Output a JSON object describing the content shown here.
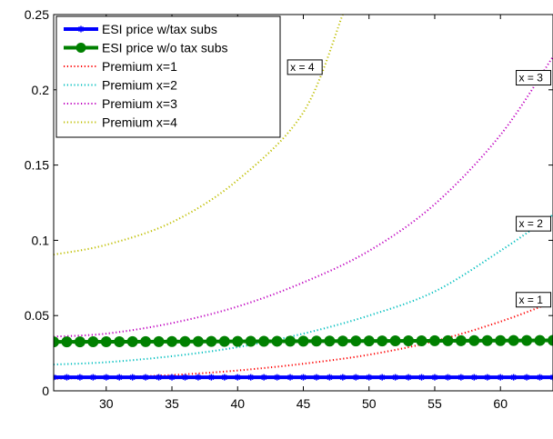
{
  "chart_data": {
    "type": "line",
    "title": "",
    "xlabel": "",
    "ylabel": "",
    "xlim": [
      26,
      64
    ],
    "ylim": [
      0,
      0.25
    ],
    "grid": false,
    "legend_position": "top-left",
    "x_ticks": [
      "30",
      "35",
      "40",
      "45",
      "50",
      "55",
      "60"
    ],
    "x_tick_values": [
      30,
      35,
      40,
      45,
      50,
      55,
      60
    ],
    "y_ticks": [
      "0",
      "0.05",
      "0.1",
      "0.15",
      "0.2",
      "0.25"
    ],
    "y_tick_values": [
      0,
      0.05,
      0.1,
      0.15,
      0.2,
      0.25
    ],
    "series": [
      {
        "name": "ESI price w/tax subs",
        "color": "#0000ff",
        "style": "solid-star",
        "x": [
          26,
          64
        ],
        "y": [
          0.009,
          0.009
        ]
      },
      {
        "name": "ESI price w/o tax subs",
        "color": "#008000",
        "style": "solid-circle",
        "x": [
          26,
          64
        ],
        "y": [
          0.0325,
          0.0335
        ]
      },
      {
        "name": "Premium x=1",
        "color": "#ff0000",
        "style": "dotted",
        "x": [
          26,
          30,
          35,
          40,
          45,
          50,
          55,
          60,
          64
        ],
        "y": [
          0.008,
          0.009,
          0.0105,
          0.0135,
          0.018,
          0.024,
          0.033,
          0.046,
          0.059
        ]
      },
      {
        "name": "Premium x=2",
        "color": "#00bfbf",
        "style": "dotted",
        "x": [
          26,
          30,
          35,
          40,
          45,
          50,
          55,
          60,
          64
        ],
        "y": [
          0.0175,
          0.019,
          0.023,
          0.029,
          0.038,
          0.05,
          0.066,
          0.093,
          0.117
        ]
      },
      {
        "name": "Premium x=3",
        "color": "#bf00bf",
        "style": "dotted",
        "x": [
          26,
          30,
          35,
          40,
          45,
          50,
          55,
          60,
          64
        ],
        "y": [
          0.036,
          0.038,
          0.045,
          0.056,
          0.072,
          0.093,
          0.124,
          0.17,
          0.222
        ]
      },
      {
        "name": "Premium x=4",
        "color": "#bfbf00",
        "style": "dotted",
        "x": [
          26,
          30,
          35,
          40,
          45,
          48
        ],
        "y": [
          0.0905,
          0.097,
          0.112,
          0.14,
          0.185,
          0.25
        ]
      }
    ],
    "annotations": [
      {
        "text": "x = 4",
        "x": 43.8,
        "y": 0.212
      },
      {
        "text": "x = 3",
        "x": 61.2,
        "y": 0.205
      },
      {
        "text": "x = 2",
        "x": 61.2,
        "y": 0.108
      },
      {
        "text": "x = 1",
        "x": 61.2,
        "y": 0.0575
      }
    ]
  }
}
